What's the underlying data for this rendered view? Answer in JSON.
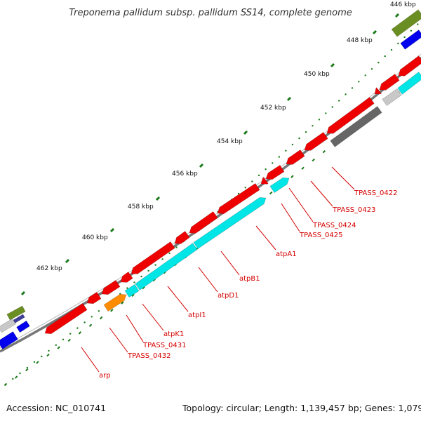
{
  "title": "Treponema pallidum subsp. pallidum SS14, complete genome",
  "footer": {
    "accession": "Accession: NC_010741",
    "summary": "Topology: circular; Length: 1,139,457 bp; Genes: 1,079"
  },
  "ticks": [
    "446 kbp",
    "448 kbp",
    "450 kbp",
    "452 kbp",
    "454 kbp",
    "456 kbp",
    "458 kbp",
    "460 kbp",
    "462 kbp"
  ],
  "genes": [
    "TPASS_0422",
    "TPASS_0423",
    "TPASS_0424",
    "TPASS_0425",
    "atpA1",
    "atpB1",
    "atpD1",
    "atpI1",
    "atpK1",
    "TPASS_0431",
    "TPASS_0432",
    "arp"
  ],
  "colors": {
    "cds": "#ee0000",
    "atp_operon": "#00e5e5",
    "cog_orange": "#ff8c00",
    "cog_olive": "#6b8e23",
    "cog_blue": "#0000ee",
    "cog_gray": "#c8c8c8",
    "cog_dark": "#666666",
    "backbone": "#777777",
    "ticks": "#1a7a1a",
    "label": "#d40000"
  }
}
